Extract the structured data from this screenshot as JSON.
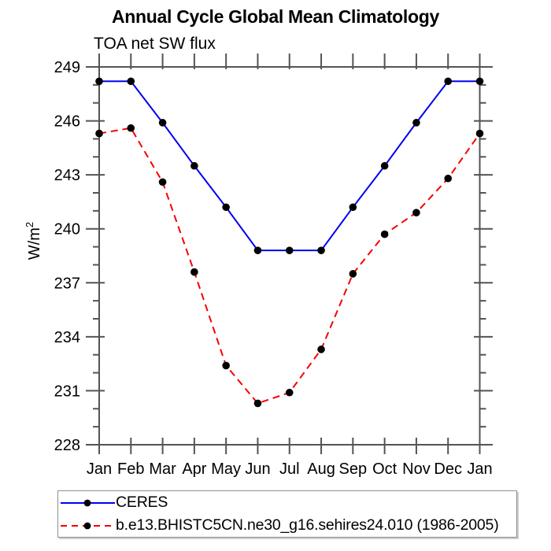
{
  "page": {
    "background": "#ffffff"
  },
  "chart": {
    "title": "Annual Cycle Global Mean Climatology",
    "subtitle": "TOA net SW flux",
    "ylabel_base": "W/m",
    "ylabel_sup": "2"
  },
  "chart_data": {
    "type": "line",
    "title": "Annual Cycle Global Mean Climatology",
    "subtitle": "TOA net SW flux",
    "ylabel": "W/m²",
    "xlabel": "",
    "categories": [
      "Jan",
      "Feb",
      "Mar",
      "Apr",
      "May",
      "Jun",
      "Jul",
      "Aug",
      "Sep",
      "Oct",
      "Nov",
      "Dec",
      "Jan"
    ],
    "ylim": [
      228,
      249
    ],
    "y_major_ticks": [
      228,
      231,
      234,
      237,
      240,
      243,
      246,
      249
    ],
    "y_minor_interval": 1,
    "grid": false,
    "legend_position": "bottom-left-box",
    "series": [
      {
        "name": "CERES",
        "color": "#0000f0",
        "line_style": "solid",
        "marker": "filled-circle",
        "marker_color": "#000000",
        "values": [
          248.2,
          248.2,
          245.9,
          243.5,
          241.2,
          238.8,
          238.8,
          238.8,
          241.2,
          243.5,
          245.9,
          248.2,
          248.2
        ]
      },
      {
        "name": "b.e13.BHISTC5CN.ne30_g16.sehires24.010 (1986-2005)",
        "color": "#f40000",
        "line_style": "dashed",
        "marker": "filled-circle",
        "marker_color": "#000000",
        "values": [
          245.3,
          245.6,
          242.6,
          237.6,
          232.4,
          230.3,
          230.9,
          233.3,
          237.5,
          239.7,
          240.9,
          242.8,
          245.3
        ]
      }
    ]
  },
  "colors": {
    "axis": "#545454",
    "text": "#000000",
    "legend_border": "#8e8e8e",
    "background": "#ffffff"
  }
}
